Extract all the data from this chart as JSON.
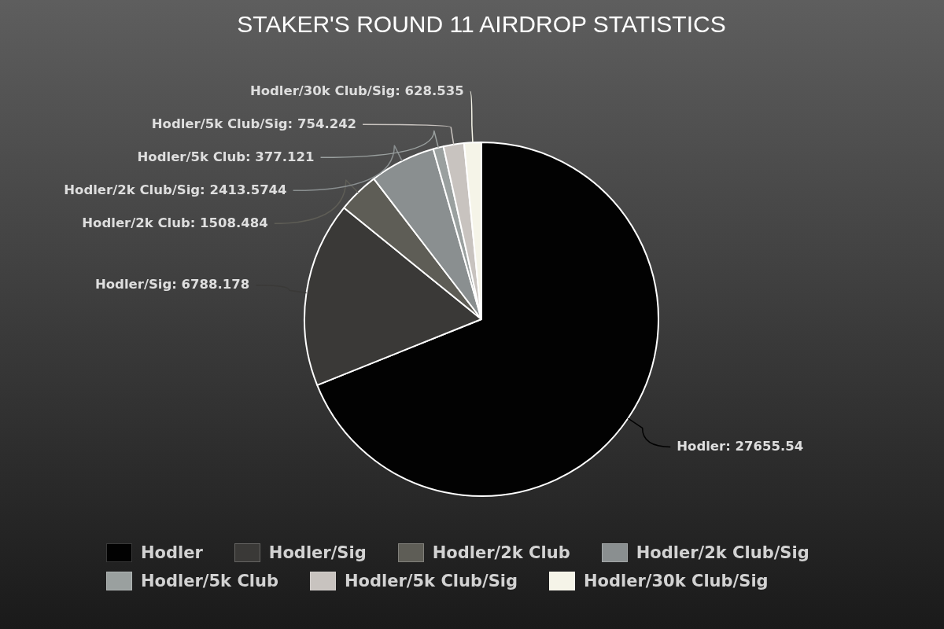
{
  "chart_data": {
    "type": "pie",
    "title": "STAKER'S ROUND 11 AIRDROP STATISTICS",
    "categories": [
      "Hodler",
      "Hodler/Sig",
      "Hodler/2k Club",
      "Hodler/2k Club/Sig",
      "Hodler/5k Club",
      "Hodler/5k Club/Sig",
      "Hodler/30k Club/Sig"
    ],
    "values": [
      27655.54,
      6788.178,
      1508.484,
      2413.5744,
      377.121,
      754.242,
      628.535
    ],
    "value_labels": [
      "Hodler: 27655.54",
      "Hodler/Sig: 6788.178",
      "Hodler/2k Club: 1508.484",
      "Hodler/2k Club/Sig: 2413.5744",
      "Hodler/5k Club: 377.121",
      "Hodler/5k Club/Sig: 754.242",
      "Hodler/30k Club/Sig: 628.535"
    ],
    "colors": [
      "#020202",
      "#3a3937",
      "#5e5d56",
      "#8a8f90",
      "#9aa09f",
      "#c8c3bf",
      "#f5f4e8"
    ],
    "legend": "bottom"
  }
}
